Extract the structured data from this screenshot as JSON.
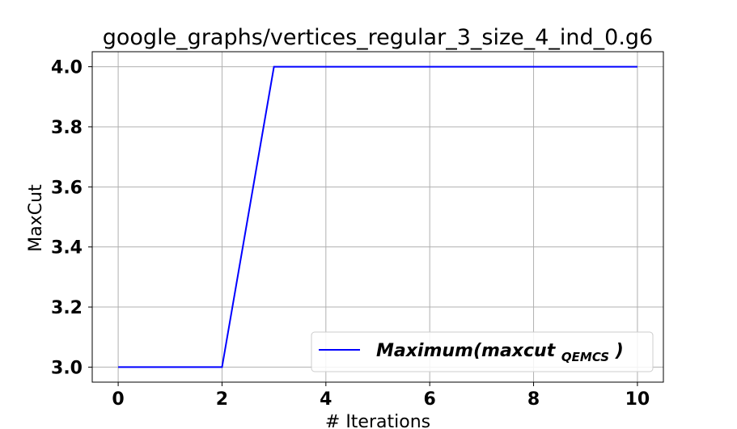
{
  "chart_data": {
    "type": "line",
    "title": "google_graphs/vertices_regular_3_size_4_ind_0.g6",
    "xlabel": "# Iterations",
    "ylabel": "MaxCut",
    "x": [
      0,
      1,
      2,
      3,
      4,
      5,
      6,
      7,
      8,
      9,
      10
    ],
    "series": [
      {
        "name": "Maximum(maxcut_QEMCS)",
        "legend_main": "Maximum(maxcut",
        "legend_sub": "QEMCS",
        "legend_close": ")",
        "color": "#0000ff",
        "values": [
          3.0,
          3.0,
          3.0,
          4.0,
          4.0,
          4.0,
          4.0,
          4.0,
          4.0,
          4.0,
          4.0
        ]
      }
    ],
    "xlim": [
      -0.5,
      10.5
    ],
    "ylim": [
      2.95,
      4.05
    ],
    "xticks": [
      0,
      2,
      4,
      6,
      8,
      10
    ],
    "xtick_labels": [
      "0",
      "2",
      "4",
      "6",
      "8",
      "10"
    ],
    "yticks": [
      3.0,
      3.2,
      3.4,
      3.6,
      3.8,
      4.0
    ],
    "ytick_labels": [
      "3.0",
      "3.2",
      "3.4",
      "3.6",
      "3.8",
      "4.0"
    ],
    "grid": true,
    "legend_position": "lower-right"
  }
}
